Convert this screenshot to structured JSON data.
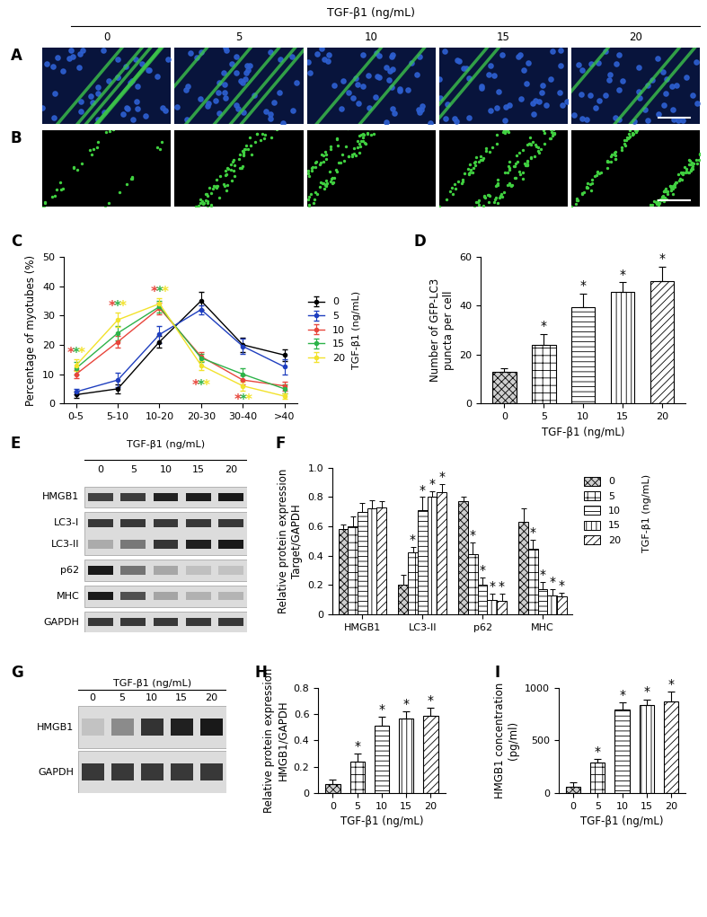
{
  "images": {
    "header": "TGF-β1 (ng/mL)",
    "columns": [
      "0",
      "5",
      "10",
      "15",
      "20"
    ],
    "rows": [
      {
        "panel": "A"
      },
      {
        "panel": "B"
      }
    ]
  },
  "blots": [
    {
      "panel": "E",
      "header": "TGF-β1 (ng/mL)",
      "lanes": [
        "0",
        "5",
        "10",
        "15",
        "20"
      ],
      "boxes": [
        [
          "HMGB1"
        ],
        [
          "LC3-I",
          "LC3-II"
        ],
        [
          "p62"
        ],
        [
          "MHC"
        ],
        [
          "GAPDH"
        ]
      ]
    },
    {
      "panel": "G",
      "header": "TGF-β1 (ng/mL)",
      "lanes": [
        "0",
        "5",
        "10",
        "15",
        "20"
      ],
      "boxes": [
        [
          "HMGB1"
        ],
        [
          "GAPDH"
        ]
      ]
    }
  ],
  "chart_data": [
    {
      "panel": "C",
      "type": "line",
      "ylabel": "Percentage of myotubes (%)",
      "categories": [
        "0-5",
        "5-10",
        "10-20",
        "20-30",
        "30-40",
        ">40"
      ],
      "ylim": [
        0,
        50
      ],
      "yticks": [
        0,
        10,
        20,
        30,
        40,
        50
      ],
      "legend": "center left",
      "legend_title": "TGF-β1 (ng/mL)",
      "marker": "o",
      "series": [
        {
          "name": "0",
          "color": "#000000",
          "values": [
            3,
            5,
            21,
            35,
            20,
            16.5
          ],
          "errors": [
            1,
            1.5,
            2,
            3,
            2.5,
            2
          ]
        },
        {
          "name": "5",
          "color": "#1f3fbf",
          "values": [
            4,
            8,
            23.5,
            32,
            19.5,
            12.5
          ],
          "errors": [
            1,
            2.5,
            3,
            1.5,
            2.5,
            2.5
          ]
        },
        {
          "name": "10",
          "color": "#e8463c",
          "values": [
            10,
            21,
            32.5,
            16,
            8,
            6
          ],
          "errors": [
            1.5,
            2,
            2,
            1.5,
            1.5,
            1.5
          ]
        },
        {
          "name": "15",
          "color": "#2db34a",
          "values": [
            12,
            24,
            33,
            15.5,
            10,
            5
          ],
          "errors": [
            2,
            2.5,
            2,
            1.5,
            2,
            1.5
          ]
        },
        {
          "name": "20",
          "color": "#f2e22c",
          "values": [
            13,
            28.5,
            34,
            13,
            6,
            2.5
          ],
          "errors": [
            2,
            2.5,
            2,
            1.5,
            1.5,
            1
          ]
        }
      ],
      "annotations": [
        {
          "category": "0-5",
          "y": 17,
          "text": "*",
          "colors": [
            "#e8463c",
            "#2db34a",
            "#f2e22c"
          ]
        },
        {
          "category": "5-10",
          "y": 33,
          "text": "*",
          "colors": [
            "#e8463c",
            "#2db34a",
            "#f2e22c"
          ]
        },
        {
          "category": "10-20",
          "y": 38,
          "text": "*",
          "colors": [
            "#e8463c",
            "#2db34a",
            "#f2e22c"
          ]
        },
        {
          "category": "20-30",
          "y": 6,
          "text": "*",
          "colors": [
            "#e8463c",
            "#2db34a",
            "#f2e22c"
          ]
        },
        {
          "category": "30-40",
          "y": 1,
          "text": "*",
          "colors": [
            "#e8463c",
            "#2db34a",
            "#f2e22c"
          ]
        }
      ]
    },
    {
      "panel": "D",
      "type": "bar",
      "ylabel": "Number of GFP-LC3\npuncta per cell",
      "xlabel": "TGF-β1 (ng/mL)",
      "categories": [
        "0",
        "5",
        "10",
        "15",
        "20"
      ],
      "values": [
        13,
        24,
        39.5,
        45.5,
        50
      ],
      "errors": [
        1.5,
        4.5,
        5.5,
        4,
        6
      ],
      "significance": [
        null,
        "*",
        "*",
        "*",
        "*"
      ],
      "ylim": [
        0,
        60
      ],
      "yticks": [
        0,
        20,
        40,
        60
      ]
    },
    {
      "panel": "F",
      "type": "grouped_bar",
      "ylabel": "Relative protein expression\nTarget/GAPDH",
      "categories": [
        "HMGB1",
        "LC3-II",
        "p62",
        "MHC"
      ],
      "ylim": [
        0,
        1.0
      ],
      "yticks": [
        0,
        0.2,
        0.4,
        0.6,
        0.8,
        {
          "value": 1.0,
          "label": "1.0"
        }
      ],
      "legend": "upper left",
      "legend_title": "TGF-β1 (ng/mL)",
      "series": [
        {
          "name": "0",
          "values": [
            0.58,
            0.2,
            0.77,
            0.63
          ],
          "errors": [
            0.03,
            0.07,
            0.03,
            0.09
          ],
          "significance": [
            null,
            null,
            null,
            null
          ]
        },
        {
          "name": "5",
          "values": [
            0.6,
            0.42,
            0.41,
            0.45
          ],
          "errors": [
            0.07,
            0.04,
            0.08,
            0.06
          ],
          "significance": [
            null,
            "*",
            "*",
            "*"
          ]
        },
        {
          "name": "10",
          "values": [
            0.7,
            0.71,
            0.2,
            0.17
          ],
          "errors": [
            0.06,
            0.09,
            0.05,
            0.05
          ],
          "significance": [
            null,
            "*",
            "*",
            "*"
          ]
        },
        {
          "name": "15",
          "values": [
            0.72,
            0.8,
            0.1,
            0.13
          ],
          "errors": [
            0.06,
            0.04,
            0.04,
            0.04
          ],
          "significance": [
            null,
            "*",
            "*",
            "*"
          ]
        },
        {
          "name": "20",
          "values": [
            0.73,
            0.83,
            0.09,
            0.12
          ],
          "errors": [
            0.04,
            0.06,
            0.05,
            0.03
          ],
          "significance": [
            null,
            "*",
            "*",
            "*"
          ]
        }
      ]
    },
    {
      "panel": "H",
      "type": "bar",
      "ylabel": "Relative protein expression\nHMGB1/GAPDH",
      "xlabel": "TGF-β1 (ng/mL)",
      "categories": [
        "0",
        "5",
        "10",
        "15",
        "20"
      ],
      "values": [
        0.07,
        0.24,
        0.51,
        0.57,
        0.59
      ],
      "errors": [
        0.03,
        0.06,
        0.07,
        0.05,
        0.06
      ],
      "significance": [
        null,
        "*",
        "*",
        "*",
        "*"
      ],
      "ylim": [
        0,
        0.8
      ],
      "yticks": [
        0,
        0.2,
        0.4,
        0.6,
        0.8
      ]
    },
    {
      "panel": "I",
      "type": "bar",
      "ylabel": "HMGB1 concentration\n(pg/ml)",
      "xlabel": "TGF-β1 (ng/mL)",
      "categories": [
        "0",
        "5",
        "10",
        "15",
        "20"
      ],
      "values": [
        60,
        295,
        790,
        840,
        870
      ],
      "errors": [
        40,
        30,
        70,
        50,
        90
      ],
      "significance": [
        null,
        "*",
        "*",
        "*",
        "*"
      ],
      "ylim": [
        0,
        1000
      ],
      "yticks": [
        0,
        500,
        1000
      ]
    }
  ]
}
